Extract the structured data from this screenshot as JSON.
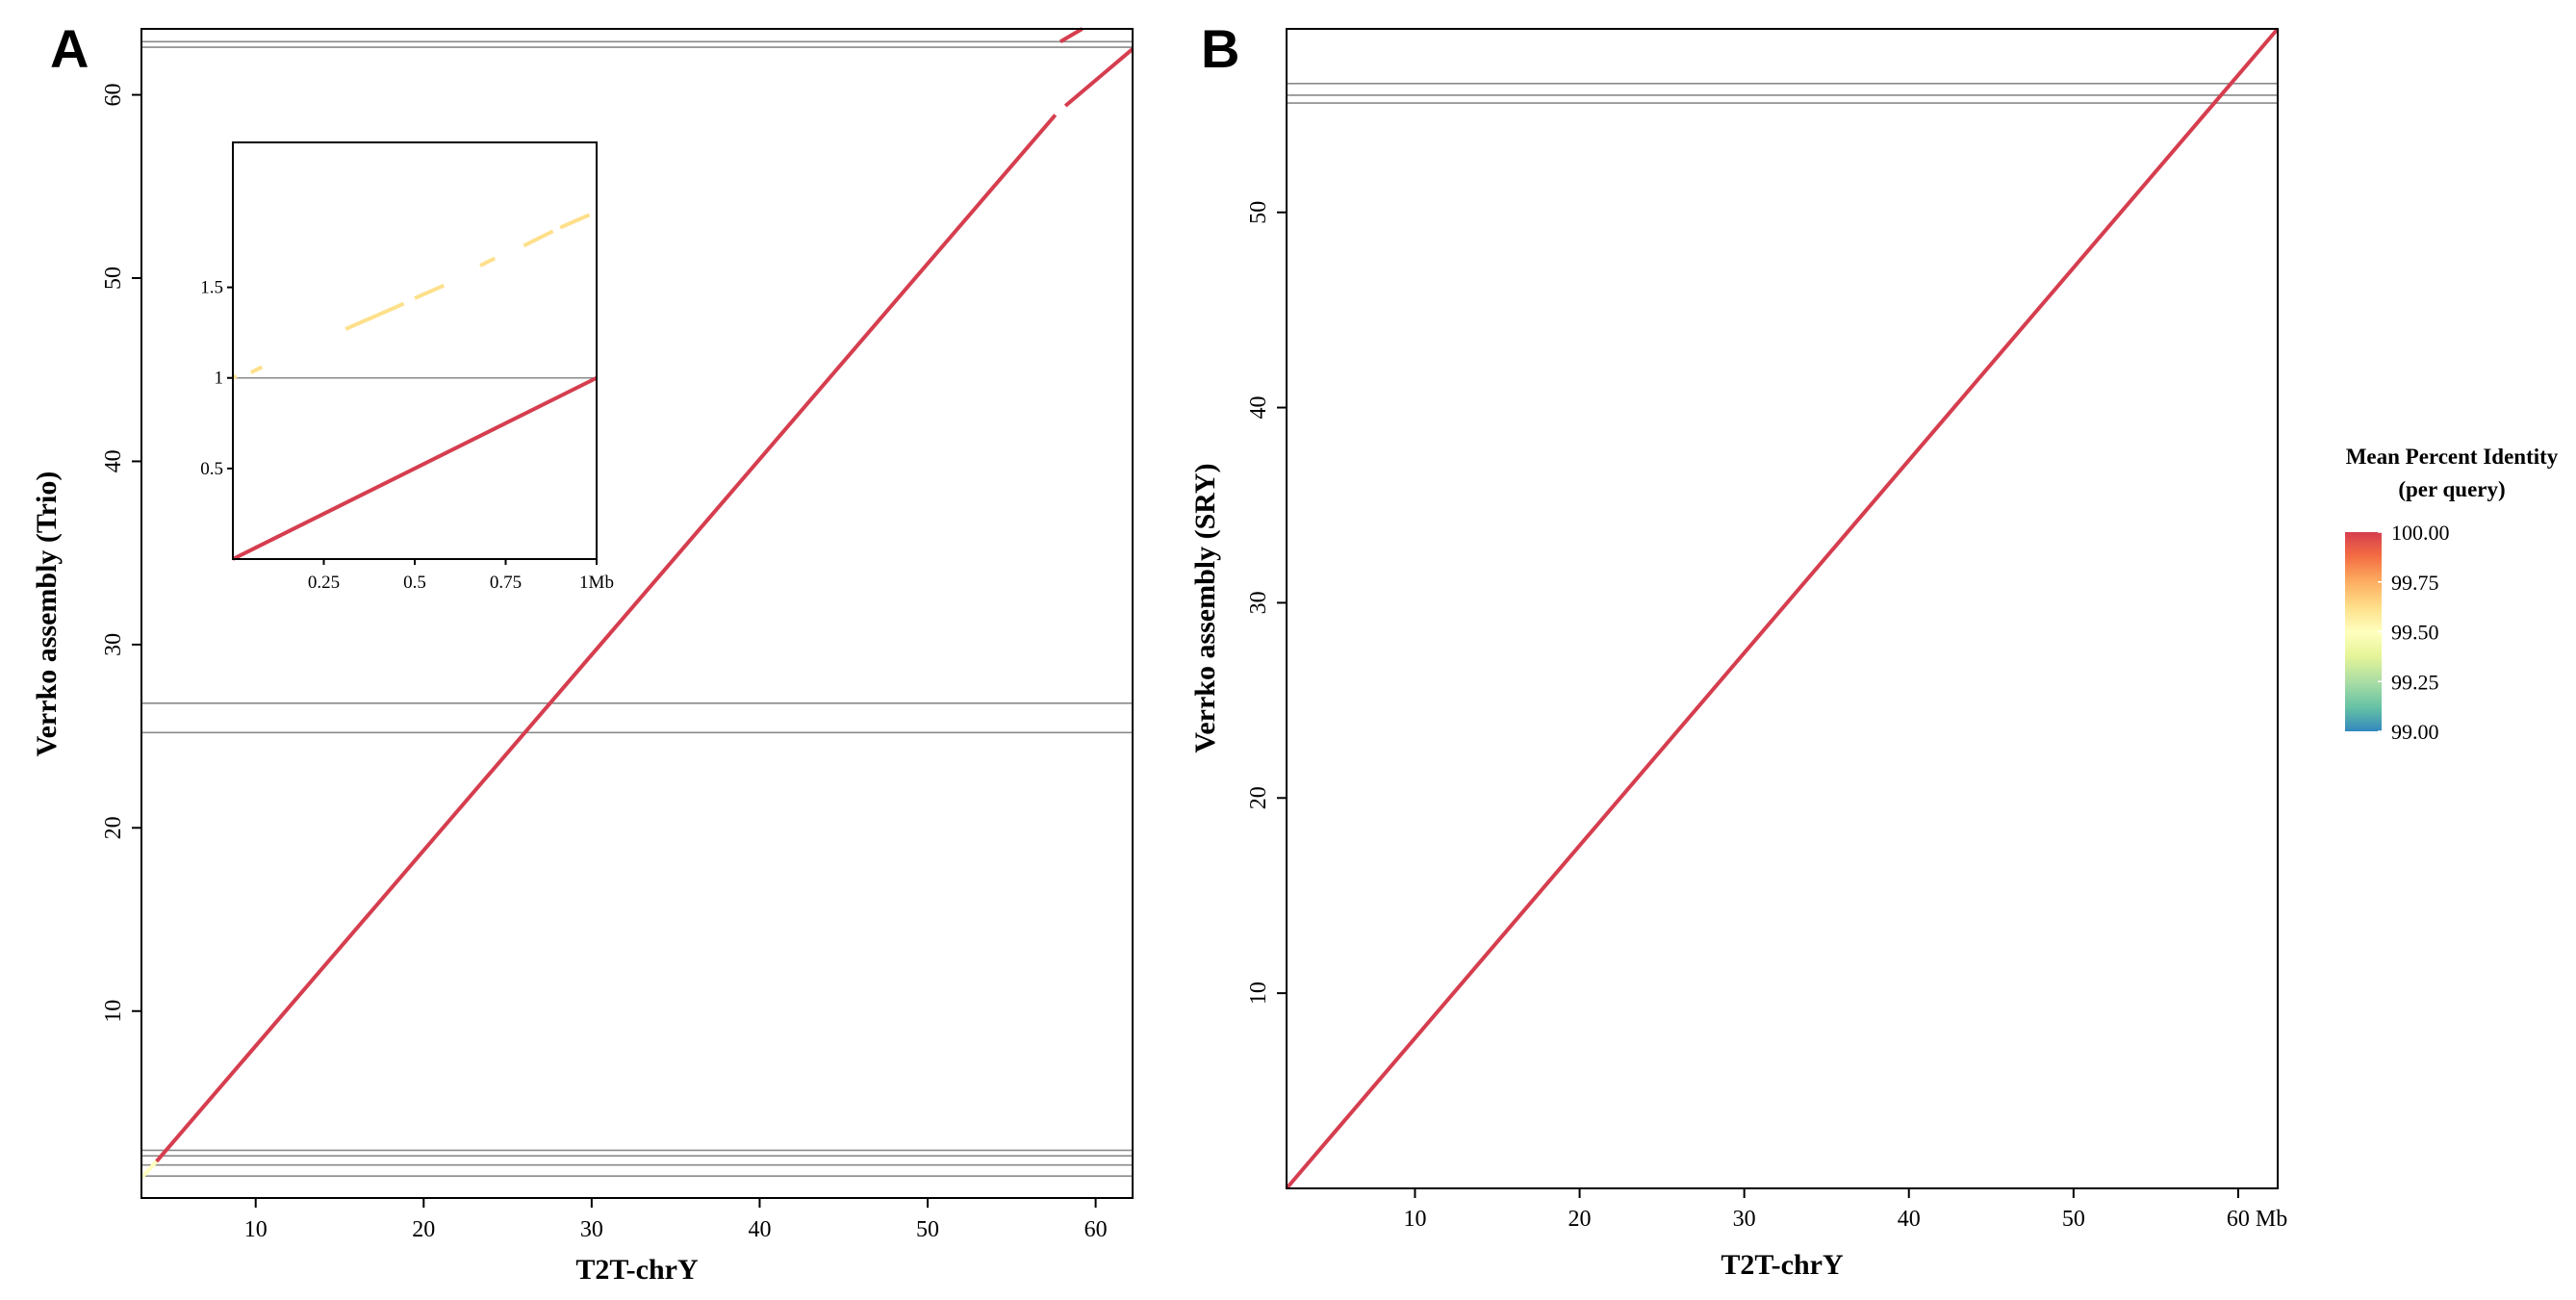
{
  "chart_data": [
    {
      "panel": "A",
      "type": "scatter",
      "xlabel": "T2T-chrY",
      "ylabel": "Verrko assembly (Trio)",
      "xlim": [
        3.2,
        62.2
      ],
      "ylim": [
        -0.2,
        63.6
      ],
      "xticks": [
        10,
        20,
        30,
        40,
        50,
        60
      ],
      "yticks": [
        10,
        20,
        30,
        40,
        50,
        60
      ],
      "xtick_labels": [
        "10",
        "20",
        "30",
        "40",
        "50",
        "60"
      ],
      "ytick_labels": [
        "10",
        "20",
        "30",
        "40",
        "50",
        "60"
      ],
      "hlines": [
        62.6,
        62.9,
        26.8,
        25.2,
        2.4,
        2.1,
        1.6,
        1.0
      ],
      "segments": [
        {
          "x": [
            3.2,
            4.1
          ],
          "y": [
            0.9,
            1.8
          ],
          "identity": 99.55
        },
        {
          "x": [
            4.1,
            57.6
          ],
          "y": [
            1.8,
            58.9
          ],
          "identity": 99.95
        },
        {
          "x": [
            58.2,
            62.2
          ],
          "y": [
            59.4,
            62.5
          ],
          "identity": 100.0
        },
        {
          "x": [
            57.9,
            59.2
          ],
          "y": [
            62.9,
            63.6
          ],
          "identity": 100.0
        }
      ],
      "inset": {
        "xlim": [
          0,
          1.0
        ],
        "ylim": [
          0,
          2.3
        ],
        "xtick_labels": [
          "0.25",
          "0.5",
          "0.75",
          "1Mb"
        ],
        "xticks": [
          0.25,
          0.5,
          0.75,
          1.0
        ],
        "ytick_labels": [
          "0.5",
          "1",
          "1.5"
        ],
        "yticks": [
          0.5,
          1.0,
          1.5
        ],
        "hlines": [
          1.0
        ],
        "segments": [
          {
            "x": [
              0.0,
              1.0
            ],
            "y": [
              0.0,
              1.0
            ],
            "identity": 99.97
          },
          {
            "x": [
              0.0,
              0.01
            ],
            "y": [
              1.0,
              1.01
            ],
            "identity": 99.6
          },
          {
            "x": [
              0.05,
              0.08
            ],
            "y": [
              1.03,
              1.06
            ],
            "identity": 99.6
          },
          {
            "x": [
              0.31,
              0.47
            ],
            "y": [
              1.27,
              1.41
            ],
            "identity": 99.6
          },
          {
            "x": [
              0.5,
              0.58
            ],
            "y": [
              1.44,
              1.51
            ],
            "identity": 99.6
          },
          {
            "x": [
              0.68,
              0.72
            ],
            "y": [
              1.62,
              1.66
            ],
            "identity": 99.6
          },
          {
            "x": [
              0.8,
              0.88
            ],
            "y": [
              1.73,
              1.81
            ],
            "identity": 99.6
          },
          {
            "x": [
              0.9,
              0.98
            ],
            "y": [
              1.83,
              1.9
            ],
            "identity": 99.6
          }
        ]
      }
    },
    {
      "panel": "B",
      "type": "scatter",
      "xlabel": "T2T-chrY",
      "ylabel": "Verrko assembly (SRY)",
      "xlim": [
        2.2,
        62.4
      ],
      "ylim": [
        0,
        59.4
      ],
      "xticks": [
        10,
        20,
        30,
        40,
        50,
        60
      ],
      "yticks": [
        10,
        20,
        30,
        40,
        50
      ],
      "xtick_labels": [
        "10",
        "20",
        "30",
        "40",
        "50",
        "60 Mb"
      ],
      "ytick_labels": [
        "10",
        "20",
        "30",
        "40",
        "50"
      ],
      "hlines": [
        56.6,
        56.0,
        55.6
      ],
      "segments": [
        {
          "x": [
            2.2,
            62.4
          ],
          "y": [
            0,
            59.4
          ],
          "identity": 99.97
        }
      ]
    }
  ],
  "legend": {
    "title_line1": "Mean Percent Identity",
    "title_line2": "(per query)",
    "min": 99.0,
    "max": 100.0,
    "ticks": [
      "100.00",
      "99.75",
      "99.50",
      "99.25",
      "99.00"
    ],
    "tick_values": [
      100.0,
      99.75,
      99.5,
      99.25,
      99.0
    ],
    "colors": [
      "#d53e4f",
      "#f46d43",
      "#fdae61",
      "#fee08b",
      "#ffffbf",
      "#e6f598",
      "#abdda4",
      "#66c2a5",
      "#3288bd"
    ]
  },
  "colors": {
    "high_identity": "#d9534f",
    "mid_identity": "#f5c876",
    "hline": "#8a8a8a",
    "frame": "#000000"
  }
}
